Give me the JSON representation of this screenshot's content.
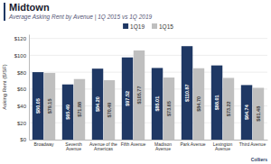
{
  "chart_data": {
    "type": "bar",
    "title": "Midtown",
    "subtitle": "Average Asking Rent by Avenue | 1Q 2015 vs 1Q 2019",
    "ylabel": "Asking Rent ($/SF)",
    "categories": [
      "Broadway",
      "Seventh\nAvenue",
      "Avenue of the\nAmericas",
      "Fifth Avenue",
      "Madison\nAvenue",
      "Park Avenue",
      "Lexington\nAvenue",
      "Third Avenue"
    ],
    "series": [
      {
        "name": "1Q19",
        "color": "#1f3864",
        "values": [
          80.05,
          65.49,
          84.2,
          97.52,
          85.01,
          110.87,
          88.01,
          64.74
        ],
        "value_labels": [
          "$80.05",
          "$65.49",
          "$84.20",
          "$97.52",
          "$85.01",
          "$110.87",
          "$88.01",
          "$64.74"
        ]
      },
      {
        "name": "1Q15",
        "color": "#bfbfbf",
        "values": [
          79.15,
          71.88,
          70.49,
          105.77,
          73.65,
          84.7,
          73.22,
          61.48
        ],
        "value_labels": [
          "$79.15",
          "$71.88",
          "$70.49",
          "$105.77",
          "$73.65",
          "$84.70",
          "$73.22",
          "$61.48"
        ]
      }
    ],
    "ylim": [
      0,
      125
    ],
    "yticks": [
      {
        "value": 0,
        "label": "$0"
      },
      {
        "value": 20,
        "label": "$20"
      },
      {
        "value": 40,
        "label": "$40"
      },
      {
        "value": 60,
        "label": "$60"
      },
      {
        "value": 80,
        "label": "$80"
      },
      {
        "value": 100,
        "label": "$100"
      },
      {
        "value": 120,
        "label": "$120"
      }
    ],
    "grid": true,
    "legend": "top",
    "data_labels": true,
    "annotations": [
      "Colliers"
    ]
  }
}
